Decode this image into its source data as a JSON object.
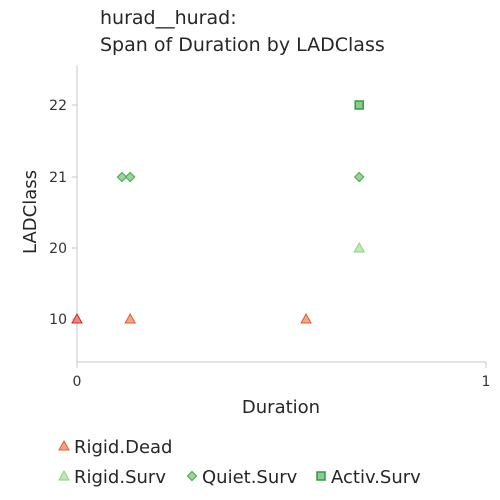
{
  "chart_data": {
    "type": "scatter",
    "title_line1": "hurad__hurad:",
    "title_line2": "Span of Duration by LADClass",
    "xlabel": "Duration",
    "ylabel": "LADClass",
    "xlim": [
      0,
      1
    ],
    "x_ticks": [
      "0",
      "1"
    ],
    "y_categories": [
      "10",
      "20",
      "21",
      "22"
    ],
    "grid": false,
    "legend_position": "bottom",
    "series": [
      {
        "name": "Rigid.Dead",
        "marker": "triangle",
        "color": "#e85a2a",
        "points": [
          {
            "x": 0.0,
            "y": "10"
          },
          {
            "x": 0.13,
            "y": "10"
          },
          {
            "x": 0.56,
            "y": "10"
          }
        ]
      },
      {
        "name": "Rigid.Surv",
        "marker": "triangle",
        "color": "#8fd17f",
        "points": [
          {
            "x": 0.69,
            "y": "20"
          }
        ]
      },
      {
        "name": "Quiet.Surv",
        "marker": "diamond",
        "color": "#4caf50",
        "points": [
          {
            "x": 0.11,
            "y": "21"
          },
          {
            "x": 0.13,
            "y": "21"
          },
          {
            "x": 0.69,
            "y": "21"
          }
        ]
      },
      {
        "name": "Activ.Surv",
        "marker": "square",
        "color": "#2e9e3a",
        "points": [
          {
            "x": 0.69,
            "y": "22"
          }
        ]
      }
    ]
  }
}
